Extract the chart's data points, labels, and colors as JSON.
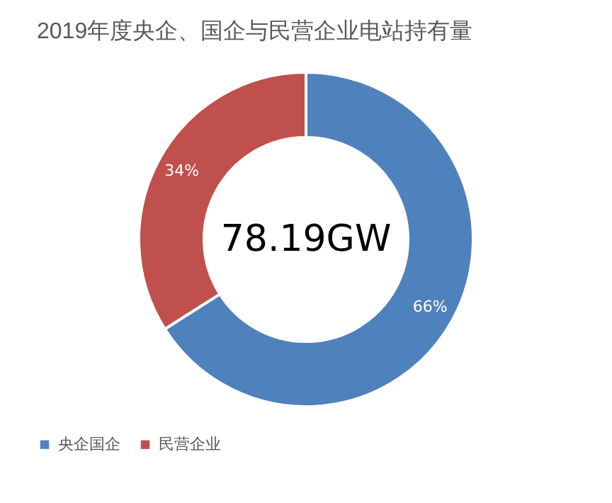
{
  "chart_data": {
    "type": "donut",
    "title": "2019年度央企、国企与民营企业电站持有量",
    "categories": [
      "央企国企",
      "民营企业"
    ],
    "values": [
      66,
      34
    ],
    "colors": [
      "#4f81bd",
      "#c0504d"
    ],
    "value_labels": [
      "66%",
      "34%"
    ],
    "annotations": [
      "78.19GW"
    ],
    "legend": "bottom"
  }
}
